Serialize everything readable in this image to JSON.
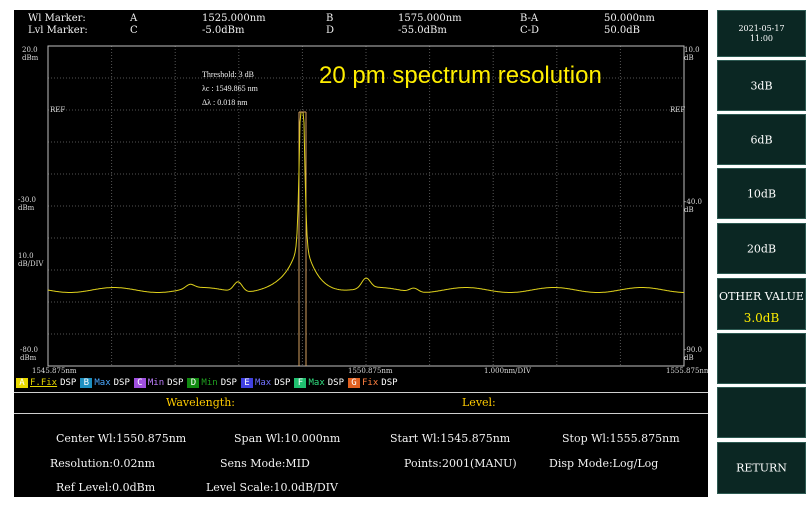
{
  "markers": {
    "wl_marker_label": "Wl  Marker:",
    "lvl_marker_label": "Lvl Marker:",
    "a_label": "A",
    "a_value": "1525.000nm",
    "b_label": "B",
    "b_value": "1575.000nm",
    "ba_label": "B-A",
    "ba_value": "50.000nm",
    "c_label": "C",
    "c_value": "-5.0dBm",
    "d_label": "D",
    "d_value": "-55.0dBm",
    "cd_label": "C-D",
    "cd_value": "50.0dB"
  },
  "plot": {
    "left_top_value": "20.0",
    "left_top_unit": "dBm",
    "left_mid_value": "-30.0",
    "left_mid_unit": "dBm",
    "left_div_value": "10.0",
    "left_div_unit": "dB/DIV",
    "left_bot_value": "-80.0",
    "left_bot_unit": "dBm",
    "right_top_value": "10.0",
    "right_top_unit": "dB",
    "right_mid_value": "-40.0",
    "right_mid_unit": "dB",
    "right_bot_value": "-90.0",
    "right_bot_unit": "dB",
    "ref_left": "REF",
    "ref_right": "REF",
    "x_start": "1545.875nm",
    "x_center": "1550.875nm",
    "x_div": "1.000nm/DIV",
    "x_end": "1555.875nm",
    "trace_color": "#e0d21c",
    "marker_line_color": "#d4a060"
  },
  "annotation": {
    "threshold": "Threshold: 3 dB",
    "center_wl": "λc  : 1549.865 nm",
    "width": "Δλ  : 0.018 nm"
  },
  "overlay_title": "20 pm spectrum resolution",
  "traces": [
    {
      "letter": "A",
      "color": "#e8d800",
      "mode": "F.Fix",
      "mode_color": "#e8d800",
      "dsp": "DSP"
    },
    {
      "letter": "B",
      "color": "#1e8fc0",
      "mode": "Max",
      "mode_color": "#4aa8ff",
      "dsp": "DSP"
    },
    {
      "letter": "C",
      "color": "#a050e0",
      "mode": "Min",
      "mode_color": "#c080ff",
      "dsp": "DSP"
    },
    {
      "letter": "D",
      "color": "#108a10",
      "mode": "Min",
      "mode_color": "#20a020",
      "dsp": "DSP"
    },
    {
      "letter": "E",
      "color": "#4040e0",
      "mode": "Max",
      "mode_color": "#7070ff",
      "dsp": "DSP"
    },
    {
      "letter": "F",
      "color": "#20c070",
      "mode": "Max",
      "mode_color": "#30e080",
      "dsp": "DSP"
    },
    {
      "letter": "G",
      "color": "#e06020",
      "mode": "Fix",
      "mode_color": "#ff8040",
      "dsp": "DSP"
    }
  ],
  "headings": {
    "wavelength": "Wavelength:",
    "level": "Level:"
  },
  "params": {
    "center_wl": "Center Wl:1550.875nm",
    "span_wl": "Span Wl:10.000nm",
    "start_wl": "Start Wl:1545.875nm",
    "stop_wl": "Stop Wl:1555.875nm",
    "resolution": "Resolution:0.02nm",
    "sens_mode": "Sens Mode:MID",
    "points": "Points:2001(MANU)",
    "disp_mode": "Disp Mode:Log/Log",
    "ref_level": "Ref Level:0.0dBm",
    "level_scale": "Level Scale:10.0dB/DIV"
  },
  "softkeys": {
    "date": "2021-05-17",
    "time": "11:00",
    "k3db": "3dB",
    "k6db": "6dB",
    "k10db": "10dB",
    "k20db": "20dB",
    "other_label": "OTHER VALUE",
    "other_value": "3.0dB",
    "return": "RETURN"
  }
}
